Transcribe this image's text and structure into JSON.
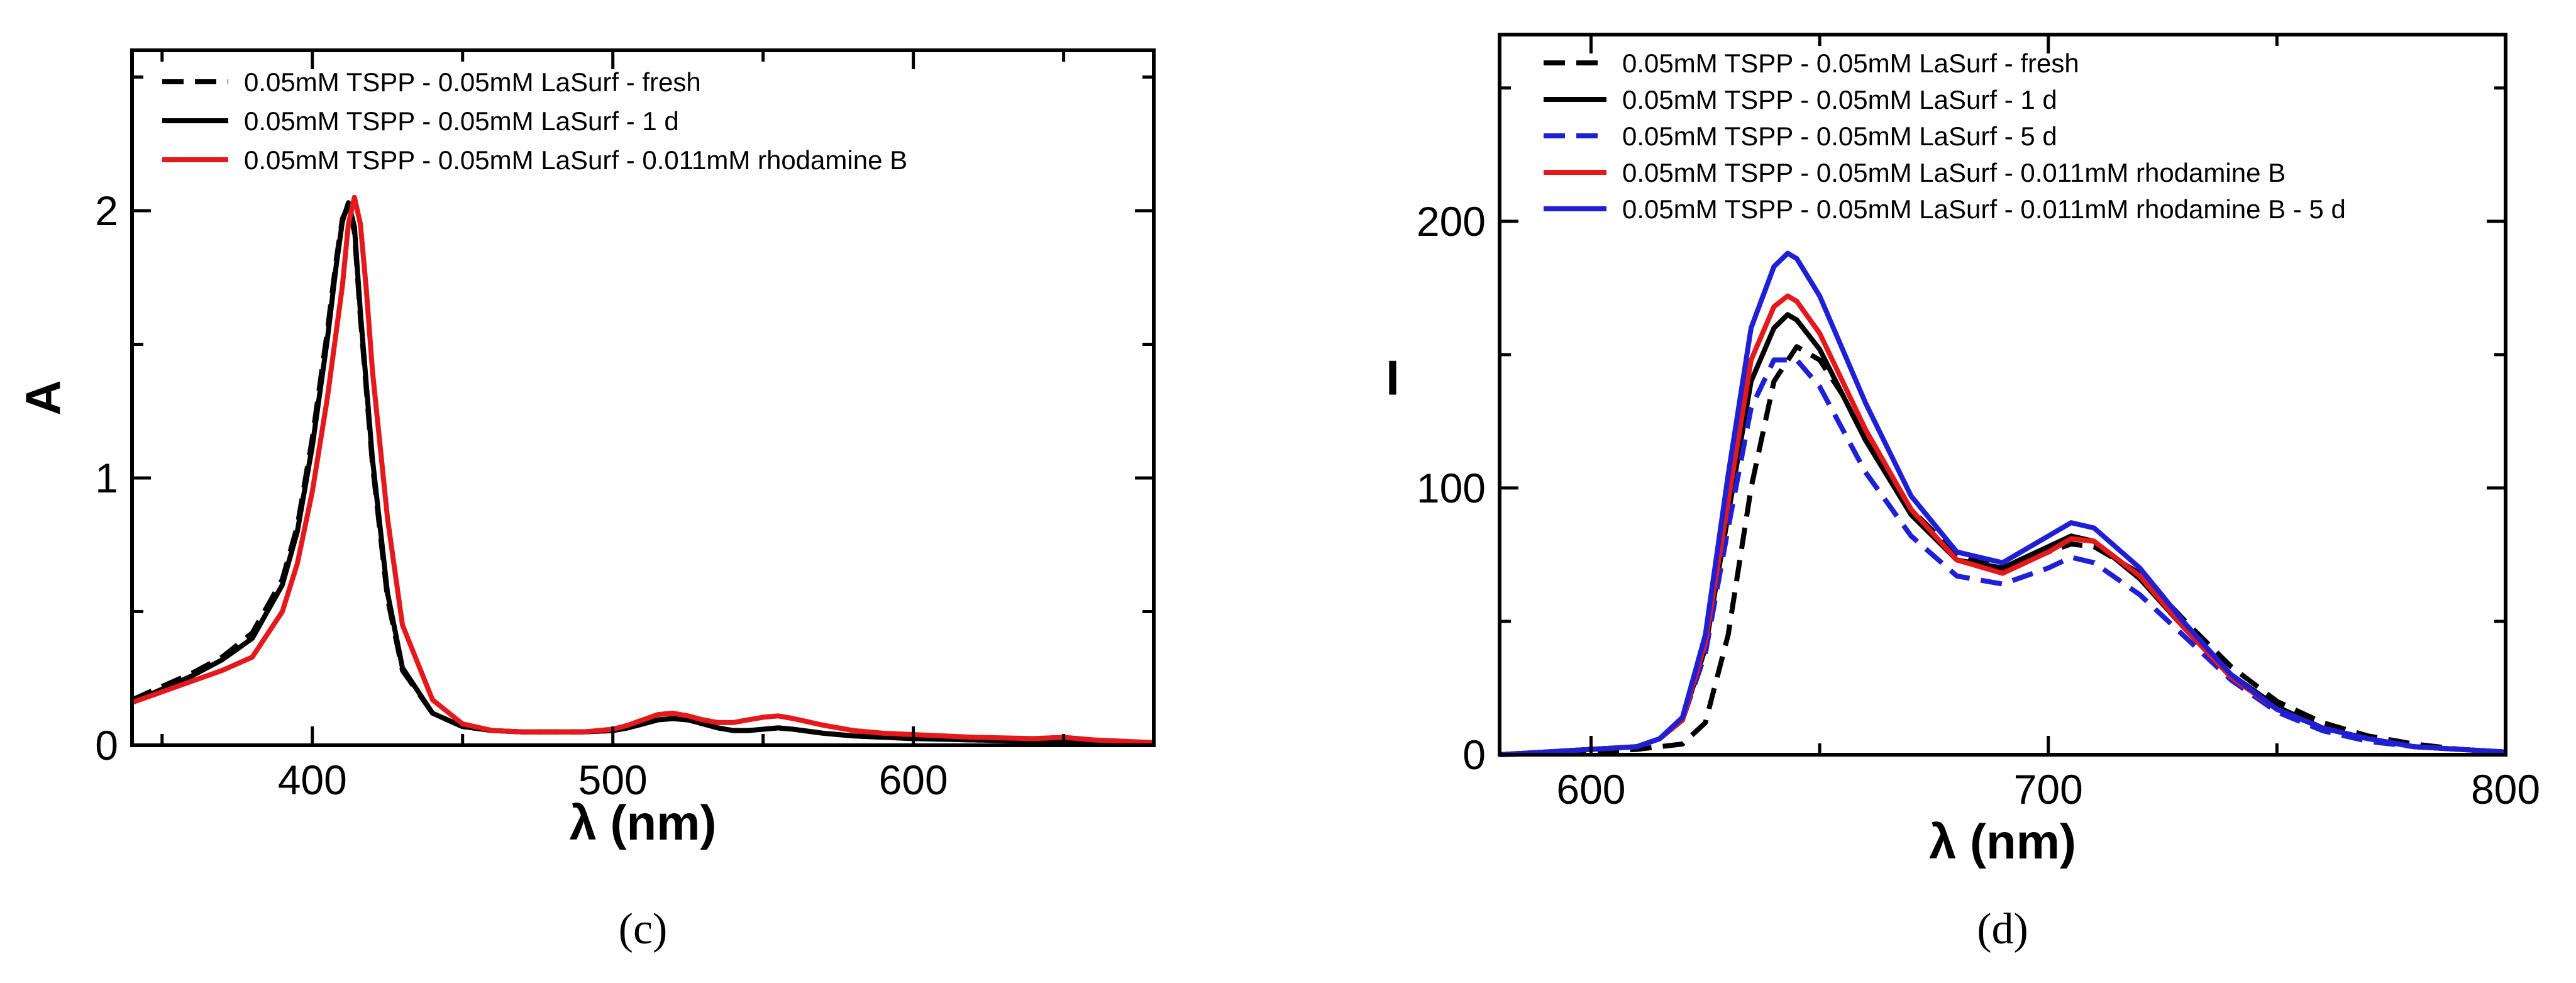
{
  "chart_data": [
    {
      "panel": "(c)",
      "type": "line",
      "xlabel": "λ (nm)",
      "ylabel": "A",
      "xlim": [
        340,
        680
      ],
      "ylim": [
        0,
        2.6
      ],
      "xticks": [
        400,
        500,
        600
      ],
      "yticks": [
        0,
        1,
        2
      ],
      "xtick_labels": [
        "400",
        "500",
        "600"
      ],
      "ytick_labels": [
        "0",
        "1",
        "2"
      ],
      "legend_position": "top-left",
      "series": [
        {
          "name": "0.05mM TSPP - 0.05mM LaSurf - fresh",
          "color": "#000000",
          "dash": true,
          "x": [
            340,
            350,
            360,
            370,
            380,
            390,
            395,
            400,
            405,
            408,
            410,
            412,
            414,
            416,
            420,
            425,
            430,
            440,
            450,
            460,
            470,
            480,
            490,
            500,
            505,
            510,
            515,
            520,
            525,
            530,
            535,
            540,
            545,
            550,
            555,
            560,
            570,
            580,
            590,
            600,
            620,
            640,
            660,
            680
          ],
          "y": [
            0.17,
            0.22,
            0.27,
            0.33,
            0.42,
            0.62,
            0.82,
            1.15,
            1.55,
            1.82,
            1.97,
            2.02,
            1.92,
            1.6,
            1.05,
            0.55,
            0.28,
            0.12,
            0.07,
            0.055,
            0.05,
            0.05,
            0.05,
            0.055,
            0.065,
            0.08,
            0.095,
            0.1,
            0.095,
            0.08,
            0.065,
            0.055,
            0.055,
            0.06,
            0.065,
            0.06,
            0.045,
            0.035,
            0.03,
            0.025,
            0.02,
            0.015,
            0.012,
            0.01
          ]
        },
        {
          "name": "0.05mM TSPP - 0.05mM LaSurf - 1 d",
          "color": "#000000",
          "dash": false,
          "x": [
            340,
            350,
            360,
            370,
            380,
            390,
            395,
            400,
            405,
            408,
            410,
            412,
            414,
            416,
            420,
            425,
            430,
            440,
            450,
            460,
            470,
            480,
            490,
            500,
            505,
            510,
            515,
            520,
            525,
            530,
            535,
            540,
            545,
            550,
            555,
            560,
            570,
            580,
            590,
            600,
            620,
            640,
            660,
            680
          ],
          "y": [
            0.16,
            0.21,
            0.26,
            0.32,
            0.4,
            0.6,
            0.8,
            1.12,
            1.52,
            1.8,
            1.96,
            2.03,
            1.94,
            1.62,
            1.07,
            0.57,
            0.29,
            0.12,
            0.07,
            0.055,
            0.05,
            0.05,
            0.05,
            0.055,
            0.065,
            0.08,
            0.095,
            0.1,
            0.095,
            0.08,
            0.065,
            0.055,
            0.055,
            0.06,
            0.065,
            0.06,
            0.045,
            0.035,
            0.03,
            0.025,
            0.02,
            0.015,
            0.012,
            0.01
          ]
        },
        {
          "name": "0.05mM TSPP - 0.05mM LaSurf - 0.011mM rhodamine B",
          "color": "#e5191c",
          "dash": false,
          "x": [
            340,
            350,
            360,
            370,
            380,
            390,
            395,
            400,
            405,
            410,
            412,
            414,
            416,
            418,
            420,
            425,
            430,
            440,
            450,
            460,
            470,
            480,
            490,
            500,
            505,
            510,
            515,
            520,
            525,
            530,
            535,
            540,
            545,
            550,
            555,
            560,
            570,
            580,
            590,
            600,
            620,
            640,
            650,
            660,
            680
          ],
          "y": [
            0.16,
            0.2,
            0.24,
            0.28,
            0.33,
            0.5,
            0.68,
            0.95,
            1.3,
            1.72,
            1.95,
            2.05,
            1.95,
            1.7,
            1.4,
            0.85,
            0.45,
            0.17,
            0.08,
            0.055,
            0.05,
            0.05,
            0.05,
            0.06,
            0.075,
            0.095,
            0.115,
            0.12,
            0.11,
            0.095,
            0.085,
            0.085,
            0.095,
            0.105,
            0.11,
            0.1,
            0.075,
            0.055,
            0.045,
            0.04,
            0.03,
            0.025,
            0.03,
            0.02,
            0.01
          ]
        }
      ]
    },
    {
      "panel": "(d)",
      "type": "line",
      "xlabel": "λ (nm)",
      "ylabel": "I",
      "xlim": [
        580,
        800
      ],
      "ylim": [
        0,
        270
      ],
      "xticks": [
        600,
        700,
        800
      ],
      "yticks": [
        0,
        100,
        200
      ],
      "xtick_labels": [
        "600",
        "700",
        "800"
      ],
      "ytick_labels": [
        "0",
        "100",
        "200"
      ],
      "legend_position": "top-left",
      "series": [
        {
          "name": "0.05mM TSPP - 0.05mM LaSurf - fresh",
          "color": "#000000",
          "dash": true,
          "x": [
            580,
            600,
            610,
            620,
            625,
            630,
            635,
            640,
            645,
            650,
            655,
            660,
            670,
            680,
            690,
            700,
            705,
            710,
            720,
            730,
            740,
            750,
            760,
            770,
            780,
            790,
            800
          ],
          "y": [
            0,
            1,
            2,
            4,
            12,
            45,
            100,
            140,
            153,
            148,
            135,
            118,
            92,
            75,
            70,
            76,
            79,
            78,
            68,
            50,
            33,
            20,
            12,
            7,
            4,
            2,
            1
          ]
        },
        {
          "name": "0.05mM TSPP - 0.05mM LaSurf - 1 d",
          "color": "#000000",
          "dash": false,
          "x": [
            580,
            600,
            610,
            615,
            620,
            625,
            630,
            635,
            640,
            643,
            645,
            650,
            655,
            660,
            670,
            680,
            690,
            700,
            705,
            710,
            720,
            730,
            740,
            750,
            760,
            770,
            780,
            790,
            800
          ],
          "y": [
            0,
            2,
            3,
            6,
            13,
            40,
            90,
            140,
            160,
            165,
            163,
            152,
            135,
            118,
            90,
            73,
            70,
            78,
            82,
            80,
            66,
            47,
            30,
            18,
            10,
            6,
            3,
            2,
            1
          ]
        },
        {
          "name": "0.05mM TSPP - 0.05mM LaSurf - 5 d",
          "color": "#1f1fd6",
          "dash": true,
          "x": [
            580,
            600,
            610,
            615,
            620,
            625,
            630,
            635,
            640,
            645,
            650,
            655,
            660,
            670,
            680,
            690,
            700,
            705,
            710,
            720,
            730,
            740,
            750,
            760,
            770,
            780,
            790,
            800
          ],
          "y": [
            0,
            2,
            3,
            6,
            13,
            38,
            85,
            130,
            148,
            148,
            138,
            122,
            106,
            82,
            67,
            64,
            70,
            74,
            72,
            60,
            44,
            28,
            16,
            9,
            5,
            3,
            2,
            1
          ]
        },
        {
          "name": "0.05mM TSPP - 0.05mM LaSurf - 0.011mM rhodamine B",
          "color": "#e5191c",
          "dash": false,
          "x": [
            580,
            600,
            610,
            615,
            620,
            625,
            630,
            635,
            640,
            643,
            645,
            650,
            655,
            660,
            670,
            680,
            690,
            700,
            705,
            710,
            720,
            730,
            740,
            750,
            760,
            770,
            780,
            790,
            800
          ],
          "y": [
            0,
            2,
            3,
            6,
            13,
            42,
            95,
            148,
            168,
            172,
            170,
            158,
            140,
            122,
            92,
            73,
            68,
            76,
            81,
            80,
            67,
            47,
            29,
            17,
            10,
            6,
            3,
            2,
            1
          ]
        },
        {
          "name": "0.05mM TSPP - 0.05mM LaSurf - 0.011mM rhodamine B - 5 d",
          "color": "#1f1fd6",
          "dash": false,
          "x": [
            580,
            600,
            610,
            615,
            620,
            625,
            630,
            635,
            640,
            643,
            645,
            650,
            655,
            660,
            670,
            680,
            690,
            700,
            705,
            710,
            720,
            730,
            740,
            750,
            760,
            770,
            780,
            790,
            800
          ],
          "y": [
            0,
            2,
            3,
            6,
            14,
            45,
            105,
            160,
            183,
            188,
            186,
            172,
            152,
            132,
            97,
            76,
            72,
            82,
            87,
            85,
            70,
            49,
            30,
            17,
            10,
            6,
            3,
            2,
            1
          ]
        }
      ]
    }
  ]
}
